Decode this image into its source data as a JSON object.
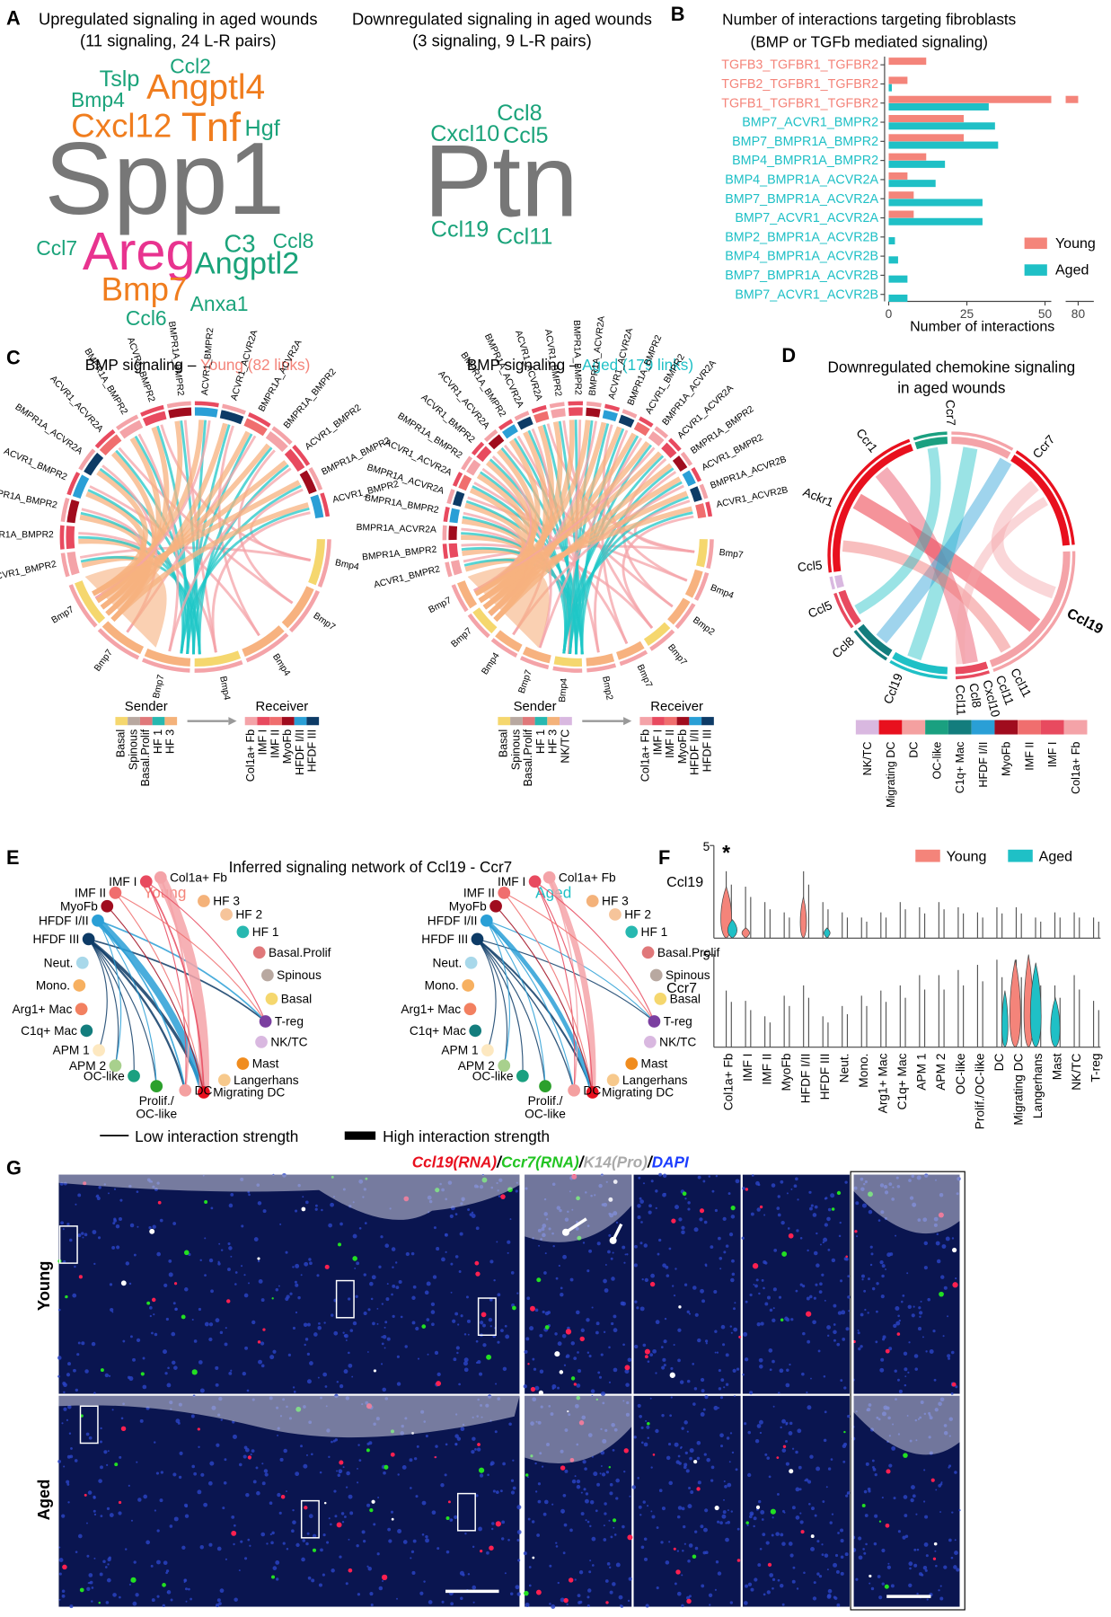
{
  "panel_letters": [
    "A",
    "B",
    "C",
    "D",
    "E",
    "F",
    "G"
  ],
  "A": {
    "up_title": "Upregulated signaling in aged wounds",
    "up_subtitle": "(11 signaling, 24 L-R pairs)",
    "up_words": [
      {
        "text": "Spp1",
        "color": "#777777"
      },
      {
        "text": "Tslp",
        "color": "#1aa37a"
      },
      {
        "text": "Ccl2",
        "color": "#1aa37a"
      },
      {
        "text": "Bmp4",
        "color": "#1aa37a"
      },
      {
        "text": "Angptl4",
        "color": "#f07d1e"
      },
      {
        "text": "Cxcl12",
        "color": "#f07d1e"
      },
      {
        "text": "Tnf",
        "color": "#f07d1e"
      },
      {
        "text": "Hgf",
        "color": "#1aa37a"
      },
      {
        "text": "Ccl7",
        "color": "#1aa37a"
      },
      {
        "text": "Areg",
        "color": "#e8338f"
      },
      {
        "text": "C3",
        "color": "#1aa37a"
      },
      {
        "text": "Ccl8",
        "color": "#1aa37a"
      },
      {
        "text": "Angptl2",
        "color": "#1aa37a"
      },
      {
        "text": "Bmp7",
        "color": "#f07d1e"
      },
      {
        "text": "Anxa1",
        "color": "#1aa37a"
      },
      {
        "text": "Ccl6",
        "color": "#1aa37a"
      }
    ],
    "down_title": "Downregulated signaling in aged wounds",
    "down_subtitle": "(3 signaling, 9 L-R pairs)",
    "down_words": [
      {
        "text": "Ptn",
        "color": "#777777"
      },
      {
        "text": "Ccl8",
        "color": "#1aa37a"
      },
      {
        "text": "Cxcl10",
        "color": "#1aa37a"
      },
      {
        "text": "Ccl5",
        "color": "#1aa37a"
      },
      {
        "text": "Ccl19",
        "color": "#1aa37a"
      },
      {
        "text": "Ccl11",
        "color": "#1aa37a"
      }
    ]
  },
  "chart_data": {
    "type": "bar",
    "orientation": "horizontal",
    "title": "Number of interactions targeting fibroblasts",
    "subtitle": "(BMP or TGFb mediated signaling)",
    "x_label": "Number of interactions",
    "categories": [
      "TGFB3_TGFBR1_TGFBR2",
      "TGFB2_TGFBR1_TGFBR2",
      "TGFB1_TGFBR1_TGFBR2",
      "BMP7_ACVR1_BMPR2",
      "BMP7_BMPR1A_BMPR2",
      "BMP4_BMPR1A_BMPR2",
      "BMP4_BMPR1A_ACVR2A",
      "BMP7_BMPR1A_ACVR2A",
      "BMP7_ACVR1_ACVR2A",
      "BMP2_BMPR1A_ACVR2B",
      "BMP4_BMPR1A_ACVR2B",
      "BMP7_BMPR1A_ACVR2B",
      "BMP7_ACVR1_ACVR2B"
    ],
    "category_colors": [
      "#f4847a",
      "#f4847a",
      "#f4847a",
      "#1fc0c6",
      "#1fc0c6",
      "#1fc0c6",
      "#1fc0c6",
      "#1fc0c6",
      "#1fc0c6",
      "#1fc0c6",
      "#1fc0c6",
      "#1fc0c6",
      "#1fc0c6"
    ],
    "series": [
      {
        "name": "Young",
        "color": "#f4847a",
        "values": [
          12,
          6,
          80,
          24,
          24,
          12,
          6,
          8,
          8,
          0,
          0,
          0,
          0
        ]
      },
      {
        "name": "Aged",
        "color": "#1fc0c6",
        "values": [
          0,
          1,
          32,
          34,
          35,
          18,
          15,
          30,
          30,
          2,
          3,
          6,
          6
        ]
      }
    ],
    "xlim": [
      0,
      85
    ],
    "x_break": [
      52,
      76
    ],
    "xticks": [
      0,
      25,
      50,
      80
    ],
    "legend": "bottom-right"
  },
  "C": {
    "panels": [
      {
        "title_prefix": "BMP signaling –",
        "title_group": "Young (82 links)",
        "group_color": "#f4847a",
        "receptors": [
          "ACVR1_BMPR2",
          "BMPR1A_BMPR2",
          "BMPR1A_BMPR2",
          "ACVR1_BMPR2",
          "BMPR1A_ACVR2A",
          "ACVR1_ACVR2A",
          "BMPR1A_BMPR2",
          "ACVR1_BMPR2",
          "BMPR1A_BMPR2",
          "ACVR1_BMPR2",
          "ACVR1_ACVR2A",
          "BMPR1A_ACVR2A",
          "BMPR1A_BMPR2",
          "ACVR1_BMPR2",
          "BMPR1A_BMPR2",
          "ACVR1_BMPR2"
        ],
        "ligands": [
          "Bmp4",
          "Bmp7",
          "Bmp4",
          "Bmp4",
          "Bmp7",
          "Bmp7",
          "Bmp7"
        ],
        "sender_title": "Sender",
        "sender_labels": [
          "Basal",
          "Spinous",
          "Basal.Prolif",
          "HF 1",
          "HF 3"
        ],
        "sender_colors": [
          "#f5d76e",
          "#b8a8a0",
          "#e0787a",
          "#27b8b0",
          "#f4b27a"
        ],
        "receiver_title": "Receiver",
        "receiver_labels": [
          "Col1a+ Fb",
          "IMF I",
          "IMF II",
          "MyoFb",
          "HFDF I/II",
          "HFDF III"
        ],
        "receiver_colors": [
          "#f4a3a8",
          "#e84a5f",
          "#f06e6e",
          "#a00c1e",
          "#2a9fd6",
          "#0d3b66"
        ]
      },
      {
        "title_prefix": "BMP signaling –",
        "title_group": "Aged (179 links)",
        "group_color": "#1fc0c6",
        "receptors": [
          "ACVR1_BMPR2",
          "BMPR1A_BMPR2",
          "BMPR1A_ACVR2A",
          "BMPR1A_BMPR2",
          "BMPR1A_ACVR2A",
          "ACVR1_ACVR2A",
          "BMPR1A_BMPR2",
          "ACVR1_BMPR2",
          "ACVR1_ACVR2A",
          "BMPR1A_BMPR2",
          "BMPR1A_ACVR2A",
          "ACVR1_ACVR2A",
          "ACVR1_BMPR2",
          "BMPR1A_BMPR2",
          "BMPR1A_ACVR2A",
          "ACVR1_ACVR2A",
          "BMPR1A_BMPR2",
          "ACVR1_BMPR2",
          "BMPR1A_ACVR2A",
          "ACVR1_ACVR2A",
          "BMPR1A_BMPR2",
          "ACVR1_BMPR2",
          "BMPR1A_ACVR2B",
          "ACVR1_ACVR2B"
        ],
        "ligands": [
          "Bmp7",
          "Bmp4",
          "Bmp2",
          "Bmp7",
          "Bmp7",
          "Bmp2",
          "Bmp4",
          "Bmp7",
          "Bmp4",
          "Bmp7",
          "Bmp7"
        ],
        "sender_title": "Sender",
        "sender_labels": [
          "Basal",
          "Spinous",
          "Basal.Prolif",
          "HF 1",
          "HF 3",
          "NK/TC"
        ],
        "sender_colors": [
          "#f5d76e",
          "#b8a8a0",
          "#e0787a",
          "#27b8b0",
          "#f4b27a",
          "#d9b8e0"
        ],
        "receiver_title": "Receiver",
        "receiver_labels": [
          "Col1a+ Fb",
          "IMF I",
          "IMF II",
          "MyoFb",
          "HFDF I/II",
          "HFDF III"
        ],
        "receiver_colors": [
          "#f4a3a8",
          "#e84a5f",
          "#f06e6e",
          "#a00c1e",
          "#2a9fd6",
          "#0d3b66"
        ]
      }
    ]
  },
  "D": {
    "title": [
      "Downregulated chemokine signaling",
      "in aged wounds"
    ],
    "labels": [
      "Ccr7",
      "Ccr1",
      "Ccr7",
      "Ackr1",
      "Ccl5",
      "Ccl5",
      "Ccl8",
      "Ccl19",
      "Ccl11",
      "Ccl8",
      "Cxcl10",
      "Ccl11",
      "Ccl11",
      "Ccl19"
    ],
    "legend_labels": [
      "NK/TC",
      "Migrating DC",
      "DC",
      "OC-like",
      "C1q+ Mac",
      "HFDF I/II",
      "MyoFb",
      "IMF II",
      "IMF I",
      "Col1a+ Fb"
    ],
    "legend_colors": [
      "#d9b8e0",
      "#e8101e",
      "#f4a0a0",
      "#1aa080",
      "#137d7d",
      "#2a9fd6",
      "#a00c1e",
      "#f06e6e",
      "#e84a5f",
      "#f4a3a8"
    ]
  },
  "E": {
    "title": "Inferred signaling network of Ccl19  - Ccr7",
    "networks": [
      {
        "group": "Young",
        "color": "#f4847a"
      },
      {
        "group": "Aged",
        "color": "#1fc0c6"
      }
    ],
    "nodes": [
      "IMF II",
      "IMF I",
      "Col1a+ Fb",
      "HF 3",
      "HF 2",
      "HF 1",
      "Basal.Prolif",
      "Spinous",
      "Basal",
      "T-reg",
      "NK/TC",
      "Mast",
      "Langerhans",
      "Migrating DC",
      "DC",
      [
        "Prolif./",
        "OC-like"
      ],
      "OC-like",
      "APM 2",
      "APM 1",
      "C1q+ Mac",
      "Arg1+ Mac",
      "Mono.",
      "Neut.",
      "HFDF III",
      "HFDF I/II",
      "MyoFb"
    ],
    "node_colors": [
      "#f06e6e",
      "#e84a5f",
      "#f4a3a8",
      "#f4b27a",
      "#f6c49a",
      "#27b8b0",
      "#e0787a",
      "#b8a8a0",
      "#f5d76e",
      "#7b3fa0",
      "#d9b8e0",
      "#f08c1e",
      "#f7c98c",
      "#e8101e",
      "#f4a0a0",
      "#2ca02c",
      "#1aa080",
      "#a8d08d",
      "#fde8c0",
      "#137d7d",
      "#f28060",
      "#f7b060",
      "#a8d8ea",
      "#0d3b66",
      "#2a9fd6",
      "#a00c1e"
    ],
    "legend_low": "Low interaction strength",
    "legend_high": "High interaction strength"
  },
  "F": {
    "legend": [
      {
        "name": "Young",
        "color": "#f4847a"
      },
      {
        "name": "Aged",
        "color": "#1fc0c6"
      }
    ],
    "genes": [
      "Ccl19",
      "Ccr7"
    ],
    "ymax": 5,
    "significance": "*",
    "groups": [
      "Col1a+ Fb",
      "IMF I",
      "IMF II",
      "MyoFb",
      "HFDF I/II",
      "HFDF III",
      "Neut.",
      "Mono.",
      "Arg1+ Mac",
      "C1q+ Mac",
      "APM 1",
      "APM 2",
      "OC-like",
      "Prolif./OC-like",
      "DC",
      "Migrating DC",
      "Langerhans",
      "Mast",
      "NK/TC",
      "T-reg"
    ]
  },
  "G": {
    "title_parts": [
      {
        "text": "Ccl19(RNA)",
        "color": "#e8101e"
      },
      {
        "text": "/",
        "color": "#000000"
      },
      {
        "text": "Ccr7(RNA)",
        "color": "#22c422"
      },
      {
        "text": "/",
        "color": "#000000"
      },
      {
        "text": "K14(Pro)",
        "color": "#aaaaaa"
      },
      {
        "text": "/",
        "color": "#000000"
      },
      {
        "text": "DAPI",
        "color": "#1a3cff"
      }
    ],
    "rows": [
      "Young",
      "Aged"
    ]
  }
}
